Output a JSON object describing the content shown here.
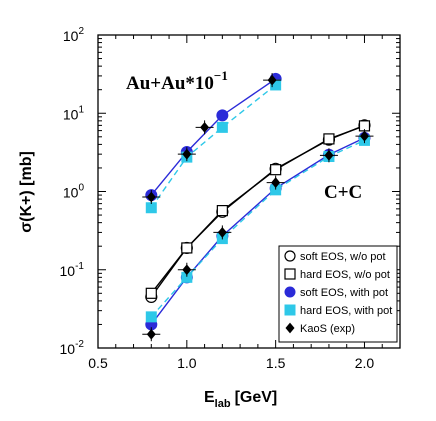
{
  "chart_data": {
    "type": "line",
    "title": "",
    "xlabel": "E",
    "xlabel_sub": "lab",
    "xlabel_unit": "[GeV]",
    "ylabel": "σ(K+) [mb]",
    "xlim": [
      0.5,
      2.2
    ],
    "ylim": [
      0.01,
      100
    ],
    "yscale": "log",
    "x_ticks": [
      "0.5",
      "1.0",
      "1.5",
      "2.0"
    ],
    "y_tick_base": "10",
    "y_tick_exponents": [
      "-2",
      "-1",
      "0",
      "1",
      "2"
    ],
    "annotations": [
      {
        "text": "Au+Au*10",
        "superscript": "−1"
      },
      {
        "text": "C+C"
      }
    ],
    "legend_position": "bottom-right",
    "series": [
      {
        "name": "soft EOS, w/o pot",
        "group": "C+C",
        "marker": "open-circle",
        "line": "solid",
        "color": "#000000",
        "x": [
          0.8,
          1.0,
          1.2,
          1.5,
          1.8,
          2.0
        ],
        "y": [
          0.045,
          0.19,
          0.55,
          1.95,
          4.6,
          7.0
        ]
      },
      {
        "name": "hard EOS, w/o pot",
        "group": "C+C",
        "marker": "open-square",
        "line": "solid",
        "color": "#000000",
        "x": [
          0.8,
          1.0,
          1.2,
          1.5,
          1.8,
          2.0
        ],
        "y": [
          0.05,
          0.19,
          0.57,
          1.9,
          4.7,
          6.9
        ]
      },
      {
        "name": "soft EOS, with pot",
        "group": "C+C",
        "marker": "filled-circle",
        "line": "solid",
        "color": "#2b2bd8",
        "x": [
          0.8,
          1.0,
          1.2,
          1.5,
          1.8,
          2.0
        ],
        "y": [
          0.02,
          0.08,
          0.27,
          1.1,
          2.95,
          4.85
        ]
      },
      {
        "name": "hard EOS, with pot",
        "group": "C+C",
        "marker": "filled-square",
        "line": "dashed",
        "color": "#2ec8e8",
        "x": [
          0.8,
          1.0,
          1.2,
          1.5,
          1.8,
          2.0
        ],
        "y": [
          0.025,
          0.08,
          0.25,
          1.05,
          2.8,
          4.5
        ]
      },
      {
        "name": "KaoS (exp)",
        "group": "C+C",
        "marker": "filled-diamond",
        "line": "none",
        "color": "#000000",
        "x": [
          0.8,
          1.0,
          1.2,
          1.5,
          1.8,
          2.0
        ],
        "y": [
          0.015,
          0.1,
          0.3,
          1.3,
          2.9,
          5.1
        ]
      },
      {
        "name": "",
        "group": "Au+Au",
        "marker": "filled-circle",
        "line": "solid",
        "color": "#2b2bd8",
        "x": [
          0.8,
          1.0,
          1.2,
          1.5
        ],
        "y": [
          0.9,
          3.2,
          9.4,
          27.5
        ]
      },
      {
        "name": "",
        "group": "Au+Au",
        "marker": "filled-square",
        "line": "dashed",
        "color": "#2ec8e8",
        "x": [
          0.8,
          1.0,
          1.2,
          1.5
        ],
        "y": [
          0.62,
          2.75,
          6.6,
          23.0
        ]
      },
      {
        "name": "",
        "group": "Au+Au",
        "marker": "filled-diamond",
        "line": "none",
        "color": "#000000",
        "x": [
          0.8,
          1.0,
          1.1,
          1.48
        ],
        "y": [
          0.85,
          3.0,
          6.6,
          26.5
        ]
      }
    ]
  }
}
